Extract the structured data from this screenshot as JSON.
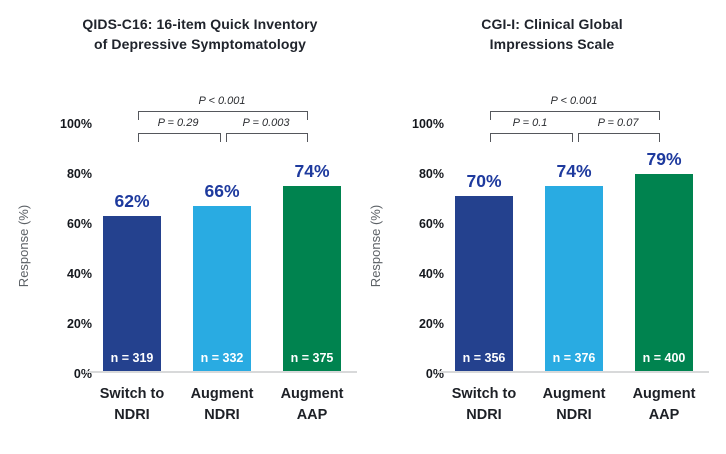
{
  "y_axis": {
    "title": "Response (%)",
    "ticks": [
      "100%",
      "80%",
      "60%",
      "40%",
      "20%",
      "0%"
    ]
  },
  "charts": [
    {
      "title": "QIDS-C16: 16-item Quick Inventory\nof Depressive Symptomatology",
      "p_overall": "P < 0.001",
      "p_left": "P = 0.29",
      "p_right": "P = 0.003",
      "bars": [
        {
          "pct": "62%",
          "n": "n = 319",
          "x_label": "Switch to\nNDRI"
        },
        {
          "pct": "66%",
          "n": "n = 332",
          "x_label": "Augment\nNDRI"
        },
        {
          "pct": "74%",
          "n": "n = 375",
          "x_label": "Augment\nAAP"
        }
      ]
    },
    {
      "title": "CGI-I: Clinical Global\nImpressions Scale",
      "p_overall": "P < 0.001",
      "p_left": "P = 0.1",
      "p_right": "P = 0.07",
      "bars": [
        {
          "pct": "70%",
          "n": "n = 356",
          "x_label": "Switch to\nNDRI"
        },
        {
          "pct": "74%",
          "n": "n = 376",
          "x_label": "Augment\nNDRI"
        },
        {
          "pct": "79%",
          "n": "n = 400",
          "x_label": "Augment\nAAP"
        }
      ]
    }
  ],
  "chart_data": [
    {
      "type": "bar",
      "title": "QIDS-C16: 16-item Quick Inventory of Depressive Symptomatology",
      "categories": [
        "Switch to NDRI",
        "Augment NDRI",
        "Augment AAP"
      ],
      "values": [
        62,
        66,
        74
      ],
      "sample_sizes": [
        319,
        332,
        375
      ],
      "bar_colors": [
        "#24418E",
        "#29ABE2",
        "#00834F"
      ],
      "value_label_color": "#1E3A9E",
      "xlabel": "",
      "ylabel": "Response (%)",
      "ylim": [
        0,
        100
      ],
      "yticks": [
        "0%",
        "20%",
        "40%",
        "60%",
        "80%",
        "100%"
      ],
      "grid": false,
      "legend": false,
      "significance": [
        {
          "between": [
            "Switch to NDRI",
            "Augment AAP"
          ],
          "label": "P < 0.001"
        },
        {
          "between": [
            "Switch to NDRI",
            "Augment NDRI"
          ],
          "label": "P = 0.29"
        },
        {
          "between": [
            "Augment NDRI",
            "Augment AAP"
          ],
          "label": "P = 0.003"
        }
      ]
    },
    {
      "type": "bar",
      "title": "CGI-I: Clinical Global Impressions Scale",
      "categories": [
        "Switch to NDRI",
        "Augment NDRI",
        "Augment AAP"
      ],
      "values": [
        70,
        74,
        79
      ],
      "sample_sizes": [
        356,
        376,
        400
      ],
      "bar_colors": [
        "#24418E",
        "#29ABE2",
        "#00834F"
      ],
      "value_label_color": "#1E3A9E",
      "xlabel": "",
      "ylabel": "Response (%)",
      "ylim": [
        0,
        100
      ],
      "yticks": [
        "0%",
        "20%",
        "40%",
        "60%",
        "80%",
        "100%"
      ],
      "grid": false,
      "legend": false,
      "significance": [
        {
          "between": [
            "Switch to NDRI",
            "Augment AAP"
          ],
          "label": "P < 0.001"
        },
        {
          "between": [
            "Switch to NDRI",
            "Augment NDRI"
          ],
          "label": "P = 0.1"
        },
        {
          "between": [
            "Augment NDRI",
            "Augment AAP"
          ],
          "label": "P = 0.07"
        }
      ]
    }
  ]
}
